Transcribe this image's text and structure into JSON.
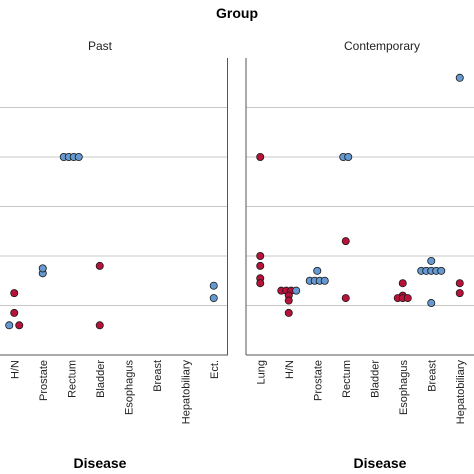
{
  "chart_data": {
    "type": "scatter",
    "title": "Group",
    "xlabel": "Disease",
    "ylabel": "",
    "grid": true,
    "colors": {
      "blue": "#6699d1",
      "red": "#b8123a"
    },
    "ylim": [
      0,
      6
    ],
    "panels": [
      {
        "label": "Past",
        "categories": [
          "H/N",
          "Prostate",
          "Rectum",
          "Bladder",
          "Esophagus",
          "Breast",
          "Hepatobiliary",
          "Ect."
        ],
        "points": [
          {
            "cat": "H/N",
            "y": 0.6,
            "offset": -1,
            "color": "blue"
          },
          {
            "cat": "H/N",
            "y": 0.6,
            "offset": 1,
            "color": "red"
          },
          {
            "cat": "H/N",
            "y": 0.85,
            "offset": 0,
            "color": "red"
          },
          {
            "cat": "H/N",
            "y": 1.25,
            "offset": 0,
            "color": "red"
          },
          {
            "cat": "Prostate",
            "y": 1.65,
            "offset": 0,
            "color": "blue"
          },
          {
            "cat": "Prostate",
            "y": 1.75,
            "offset": 0,
            "color": "blue"
          },
          {
            "cat": "Rectum",
            "y": 4.0,
            "offset": -1.5,
            "color": "blue"
          },
          {
            "cat": "Rectum",
            "y": 4.0,
            "offset": -0.5,
            "color": "blue"
          },
          {
            "cat": "Rectum",
            "y": 4.0,
            "offset": 0.5,
            "color": "blue"
          },
          {
            "cat": "Rectum",
            "y": 4.0,
            "offset": 1.5,
            "color": "blue"
          },
          {
            "cat": "Bladder",
            "y": 1.8,
            "offset": 0,
            "color": "red"
          },
          {
            "cat": "Bladder",
            "y": 0.6,
            "offset": 0,
            "color": "red"
          },
          {
            "cat": "Ect.",
            "y": 1.4,
            "offset": 0,
            "color": "blue"
          },
          {
            "cat": "Ect.",
            "y": 1.15,
            "offset": 0,
            "color": "blue"
          }
        ]
      },
      {
        "label": "Contemporary",
        "categories": [
          "Lung",
          "H/N",
          "Prostate",
          "Rectum",
          "Bladder",
          "Esophagus",
          "Breast",
          "Hepatobiliary"
        ],
        "points": [
          {
            "cat": "Lung",
            "y": 4.0,
            "offset": 0,
            "color": "red"
          },
          {
            "cat": "Lung",
            "y": 2.0,
            "offset": 0,
            "color": "red"
          },
          {
            "cat": "Lung",
            "y": 1.8,
            "offset": 0,
            "color": "red"
          },
          {
            "cat": "Lung",
            "y": 1.55,
            "offset": 0,
            "color": "red"
          },
          {
            "cat": "Lung",
            "y": 1.45,
            "offset": 0,
            "color": "red"
          },
          {
            "cat": "H/N",
            "y": 1.3,
            "offset": -1.5,
            "color": "red"
          },
          {
            "cat": "H/N",
            "y": 1.3,
            "offset": -0.5,
            "color": "red"
          },
          {
            "cat": "H/N",
            "y": 1.3,
            "offset": 0.5,
            "color": "red"
          },
          {
            "cat": "H/N",
            "y": 1.3,
            "offset": 1.5,
            "color": "blue"
          },
          {
            "cat": "H/N",
            "y": 1.2,
            "offset": 0,
            "color": "red"
          },
          {
            "cat": "H/N",
            "y": 1.1,
            "offset": 0,
            "color": "red"
          },
          {
            "cat": "H/N",
            "y": 0.85,
            "offset": 0,
            "color": "red"
          },
          {
            "cat": "Prostate",
            "y": 1.5,
            "offset": -1.5,
            "color": "blue"
          },
          {
            "cat": "Prostate",
            "y": 1.5,
            "offset": -0.5,
            "color": "blue"
          },
          {
            "cat": "Prostate",
            "y": 1.5,
            "offset": 0.5,
            "color": "blue"
          },
          {
            "cat": "Prostate",
            "y": 1.5,
            "offset": 1.5,
            "color": "blue"
          },
          {
            "cat": "Prostate",
            "y": 1.7,
            "offset": 0,
            "color": "blue"
          },
          {
            "cat": "Rectum",
            "y": 4.0,
            "offset": -0.5,
            "color": "blue"
          },
          {
            "cat": "Rectum",
            "y": 4.0,
            "offset": 0.5,
            "color": "blue"
          },
          {
            "cat": "Rectum",
            "y": 2.3,
            "offset": 0,
            "color": "red"
          },
          {
            "cat": "Rectum",
            "y": 1.15,
            "offset": 0,
            "color": "red"
          },
          {
            "cat": "Esophagus",
            "y": 1.45,
            "offset": 0,
            "color": "red"
          },
          {
            "cat": "Esophagus",
            "y": 1.2,
            "offset": 0,
            "color": "red"
          },
          {
            "cat": "Esophagus",
            "y": 1.15,
            "offset": -1,
            "color": "red"
          },
          {
            "cat": "Esophagus",
            "y": 1.15,
            "offset": 0,
            "color": "red"
          },
          {
            "cat": "Esophagus",
            "y": 1.15,
            "offset": 1,
            "color": "red"
          },
          {
            "cat": "Breast",
            "y": 1.9,
            "offset": 0,
            "color": "blue"
          },
          {
            "cat": "Breast",
            "y": 1.7,
            "offset": -2,
            "color": "blue"
          },
          {
            "cat": "Breast",
            "y": 1.7,
            "offset": -1,
            "color": "blue"
          },
          {
            "cat": "Breast",
            "y": 1.7,
            "offset": 0,
            "color": "blue"
          },
          {
            "cat": "Breast",
            "y": 1.7,
            "offset": 1,
            "color": "blue"
          },
          {
            "cat": "Breast",
            "y": 1.7,
            "offset": 2,
            "color": "blue"
          },
          {
            "cat": "Breast",
            "y": 1.05,
            "offset": 0,
            "color": "blue"
          },
          {
            "cat": "Hepatobiliary",
            "y": 5.6,
            "offset": 0,
            "color": "blue"
          },
          {
            "cat": "Hepatobiliary",
            "y": 1.45,
            "offset": 0,
            "color": "red"
          },
          {
            "cat": "Hepatobiliary",
            "y": 1.25,
            "offset": 0,
            "color": "red"
          }
        ]
      }
    ]
  }
}
